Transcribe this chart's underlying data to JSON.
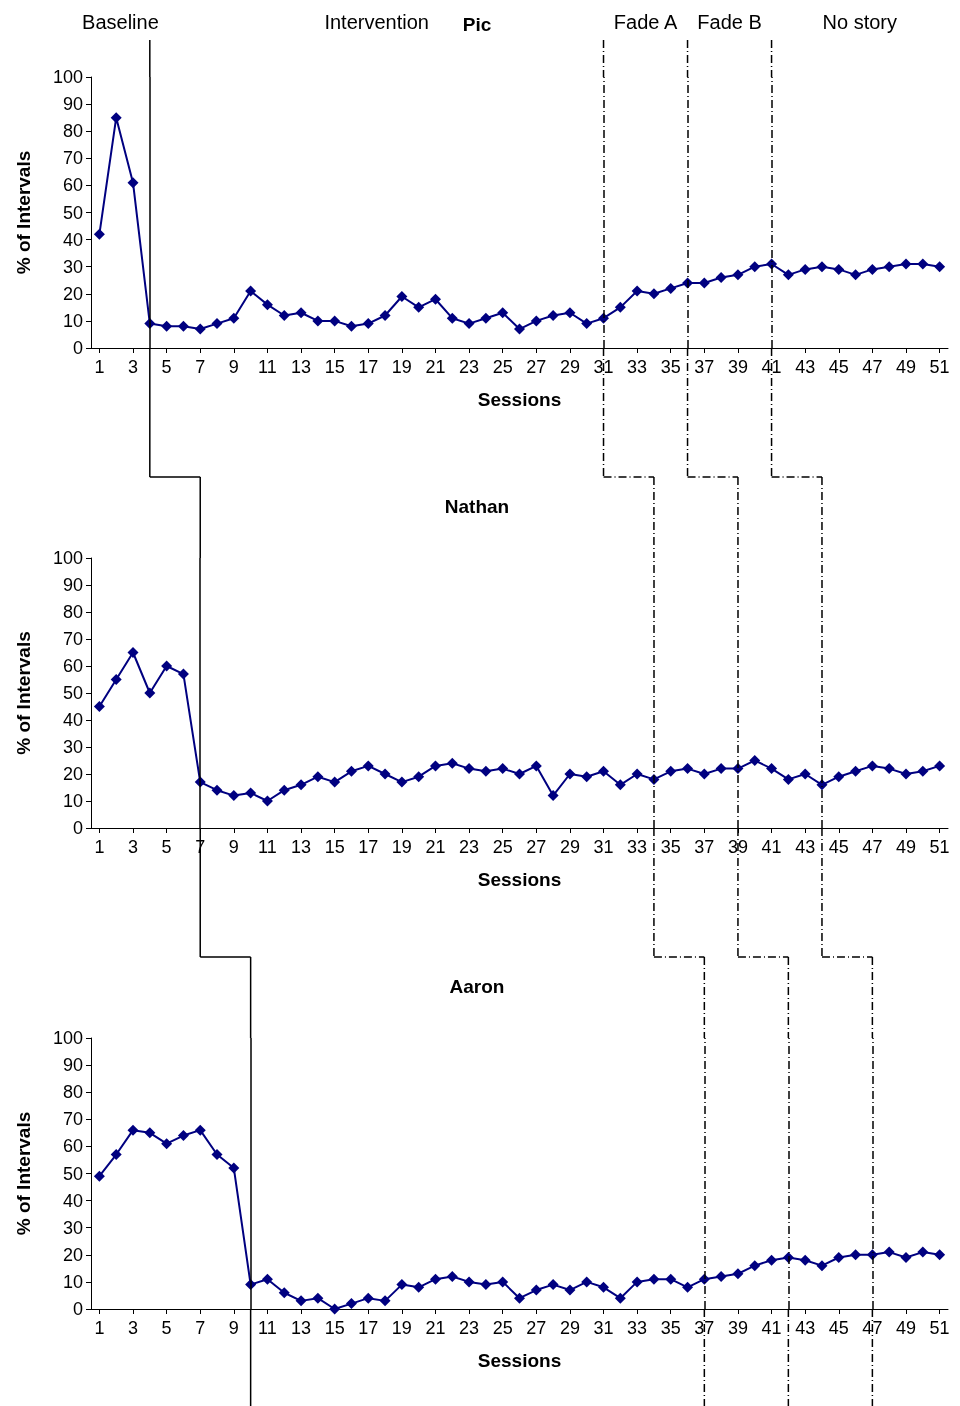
{
  "chart_data": [
    {
      "type": "line",
      "title": "Pic",
      "xlabel": "Sessions",
      "ylabel": "% of Intervals",
      "annotations": [
        "Baseline",
        "Intervention",
        "Fade A",
        "Fade B",
        "No story"
      ],
      "x": [
        1,
        2,
        3,
        4,
        5,
        6,
        7,
        8,
        9,
        10,
        11,
        12,
        13,
        14,
        15,
        16,
        17,
        18,
        19,
        20,
        21,
        22,
        23,
        24,
        25,
        26,
        27,
        28,
        29,
        30,
        31,
        32,
        33,
        34,
        35,
        36,
        37,
        38,
        39,
        40,
        41,
        42,
        43,
        44,
        45,
        46,
        47,
        48,
        49,
        50,
        51
      ],
      "series": [
        {
          "color": "#000080",
          "values": [
            42,
            85,
            61,
            9,
            8,
            8,
            7,
            9,
            11,
            21,
            16,
            12,
            13,
            10,
            10,
            8,
            9,
            12,
            19,
            15,
            18,
            11,
            9,
            11,
            13,
            7,
            10,
            12,
            13,
            9,
            11,
            15,
            21,
            20,
            22,
            24,
            24,
            26,
            27,
            30,
            31,
            27,
            29,
            30,
            29,
            27,
            29,
            30,
            31,
            31,
            30
          ]
        }
      ],
      "xlim": [
        0.5,
        51.5
      ],
      "xticks": [
        1,
        3,
        5,
        7,
        9,
        11,
        13,
        15,
        17,
        19,
        21,
        23,
        25,
        27,
        29,
        31,
        33,
        35,
        37,
        39,
        41,
        43,
        45,
        47,
        49,
        51
      ],
      "ylim": [
        0,
        100
      ],
      "yticks": [
        0,
        10,
        20,
        30,
        40,
        50,
        60,
        70,
        80,
        90,
        100
      ],
      "marker": "diamond",
      "ref_lines": [
        {
          "axis": "x",
          "value": 4,
          "line_style": "solid",
          "color": "#000000"
        },
        {
          "axis": "x",
          "value": 31,
          "line_style": "dashed",
          "color": "#000000"
        },
        {
          "axis": "x",
          "value": 36,
          "line_style": "dashed",
          "color": "#000000"
        },
        {
          "axis": "x",
          "value": 41,
          "line_style": "dashed",
          "color": "#000000"
        }
      ]
    },
    {
      "type": "line",
      "title": "Nathan",
      "xlabel": "Sessions",
      "ylabel": "% of Intervals",
      "x": [
        1,
        2,
        3,
        4,
        5,
        6,
        7,
        8,
        9,
        10,
        11,
        12,
        13,
        14,
        15,
        16,
        17,
        18,
        19,
        20,
        21,
        22,
        23,
        24,
        25,
        26,
        27,
        28,
        29,
        30,
        31,
        32,
        33,
        34,
        35,
        36,
        37,
        38,
        39,
        40,
        41,
        42,
        43,
        44,
        45,
        46,
        47,
        48,
        49,
        50,
        51
      ],
      "series": [
        {
          "color": "#000080",
          "values": [
            45,
            55,
            65,
            50,
            60,
            57,
            17,
            14,
            12,
            13,
            10,
            14,
            16,
            19,
            17,
            21,
            23,
            20,
            17,
            19,
            23,
            24,
            22,
            21,
            22,
            20,
            23,
            12,
            20,
            19,
            21,
            16,
            20,
            18,
            21,
            22,
            20,
            22,
            22,
            25,
            22,
            18,
            20,
            16,
            19,
            21,
            23,
            22,
            20,
            21,
            23
          ]
        }
      ],
      "xlim": [
        0.5,
        51.5
      ],
      "xticks": [
        1,
        3,
        5,
        7,
        9,
        11,
        13,
        15,
        17,
        19,
        21,
        23,
        25,
        27,
        29,
        31,
        33,
        35,
        37,
        39,
        41,
        43,
        45,
        47,
        49,
        51
      ],
      "ylim": [
        0,
        100
      ],
      "yticks": [
        0,
        10,
        20,
        30,
        40,
        50,
        60,
        70,
        80,
        90,
        100
      ],
      "marker": "diamond",
      "ref_lines": [
        {
          "axis": "x",
          "value": 7,
          "line_style": "solid",
          "color": "#000000"
        },
        {
          "axis": "x",
          "value": 34,
          "line_style": "dashed",
          "color": "#000000"
        },
        {
          "axis": "x",
          "value": 39,
          "line_style": "dashed",
          "color": "#000000"
        },
        {
          "axis": "x",
          "value": 44,
          "line_style": "dashed",
          "color": "#000000"
        }
      ]
    },
    {
      "type": "line",
      "title": "Aaron",
      "xlabel": "Sessions",
      "ylabel": "% of Intervals",
      "x": [
        1,
        2,
        3,
        4,
        5,
        6,
        7,
        8,
        9,
        10,
        11,
        12,
        13,
        14,
        15,
        16,
        17,
        18,
        19,
        20,
        21,
        22,
        23,
        24,
        25,
        26,
        27,
        28,
        29,
        30,
        31,
        32,
        33,
        34,
        35,
        36,
        37,
        38,
        39,
        40,
        41,
        42,
        43,
        44,
        45,
        46,
        47,
        48,
        49,
        50,
        51
      ],
      "series": [
        {
          "color": "#000080",
          "values": [
            49,
            57,
            66,
            65,
            61,
            64,
            66,
            57,
            52,
            9,
            11,
            6,
            3,
            4,
            0,
            2,
            4,
            3,
            9,
            8,
            11,
            12,
            10,
            9,
            10,
            4,
            7,
            9,
            7,
            10,
            8,
            4,
            10,
            11,
            11,
            8,
            11,
            12,
            13,
            16,
            18,
            19,
            18,
            16,
            19,
            20,
            20,
            21,
            19,
            21,
            20
          ]
        }
      ],
      "xlim": [
        0.5,
        51.5
      ],
      "xticks": [
        1,
        3,
        5,
        7,
        9,
        11,
        13,
        15,
        17,
        19,
        21,
        23,
        25,
        27,
        29,
        31,
        33,
        35,
        37,
        39,
        41,
        43,
        45,
        47,
        49,
        51
      ],
      "ylim": [
        0,
        100
      ],
      "yticks": [
        0,
        10,
        20,
        30,
        40,
        50,
        60,
        70,
        80,
        90,
        100
      ],
      "marker": "diamond",
      "ref_lines": [
        {
          "axis": "x",
          "value": 10,
          "line_style": "solid",
          "color": "#000000"
        },
        {
          "axis": "x",
          "value": 37,
          "line_style": "dashed",
          "color": "#000000"
        },
        {
          "axis": "x",
          "value": 42,
          "line_style": "dashed",
          "color": "#000000"
        },
        {
          "axis": "x",
          "value": 47,
          "line_style": "dashed",
          "color": "#000000"
        }
      ]
    }
  ]
}
